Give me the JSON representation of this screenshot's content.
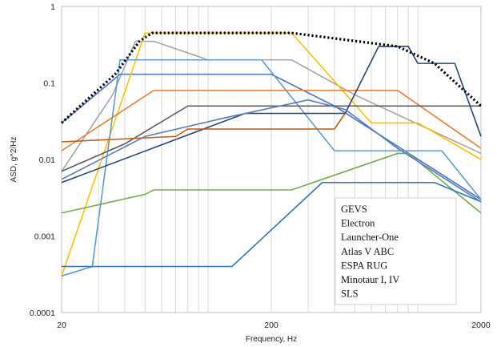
{
  "chart_data": {
    "type": "line",
    "xlabel": "Frequency, Hz",
    "ylabel": "ASD, g^2/Hz",
    "x_scale": "log",
    "y_scale": "log",
    "xlim": [
      20,
      2000
    ],
    "ylim": [
      0.0001,
      1
    ],
    "x_ticks": [
      "20",
      "200",
      "2000"
    ],
    "y_ticks": [
      "1",
      "0.1",
      "0.01",
      "0.001",
      "0.0001"
    ],
    "grid": "vertical",
    "legend_placement": "bottom-right",
    "legend": [
      "GEVS",
      "Electron",
      "Launcher-One",
      "Atlas V ABC",
      "ESPA RUG",
      "Minotaur I, IV",
      "SLS"
    ],
    "series": [
      {
        "name": "",
        "color": "#000000",
        "dashed": true,
        "points": [
          [
            20,
            0.03
          ],
          [
            36,
            0.13
          ],
          [
            47,
            0.35
          ],
          [
            54,
            0.45
          ],
          [
            250,
            0.45
          ],
          [
            800,
            0.3
          ],
          [
            1200,
            0.18
          ],
          [
            2000,
            0.05
          ]
        ]
      },
      {
        "name": "",
        "color": "#A5A5A5",
        "points": [
          [
            20,
            0.007
          ],
          [
            35,
            0.07
          ],
          [
            45,
            0.35
          ],
          [
            55,
            0.35
          ],
          [
            100,
            0.2
          ],
          [
            250,
            0.2
          ],
          [
            500,
            0.07
          ],
          [
            2000,
            0.012
          ]
        ]
      },
      {
        "name": "",
        "color": "#4472C4",
        "points": [
          [
            20,
            0.03
          ],
          [
            38,
            0.13
          ],
          [
            200,
            0.13
          ],
          [
            400,
            0.05
          ],
          [
            2000,
            0.003
          ]
        ]
      },
      {
        "name": "",
        "color": "#FFC000",
        "points": [
          [
            20,
            0.0003
          ],
          [
            50,
            0.45
          ],
          [
            250,
            0.45
          ],
          [
            600,
            0.03
          ],
          [
            1000,
            0.03
          ],
          [
            2000,
            0.01
          ]
        ]
      },
      {
        "name": "",
        "color": "#5B9BD5",
        "points": [
          [
            20,
            0.0003
          ],
          [
            28,
            0.0004
          ],
          [
            38,
            0.2
          ],
          [
            180,
            0.2
          ],
          [
            400,
            0.013
          ],
          [
            1300,
            0.013
          ],
          [
            2000,
            0.003
          ]
        ]
      },
      {
        "name": "",
        "color": "#ED7D31",
        "points": [
          [
            20,
            0.013
          ],
          [
            55,
            0.08
          ],
          [
            800,
            0.08
          ],
          [
            2000,
            0.014
          ]
        ]
      },
      {
        "name": "",
        "color": "#595959",
        "points": [
          [
            20,
            0.007
          ],
          [
            40,
            0.016
          ],
          [
            80,
            0.05
          ],
          [
            2000,
            0.05
          ]
        ]
      },
      {
        "name": "",
        "color": "#264478",
        "points": [
          [
            20,
            0.005
          ],
          [
            150,
            0.04
          ],
          [
            450,
            0.04
          ],
          [
            650,
            0.3
          ],
          [
            900,
            0.3
          ],
          [
            1000,
            0.18
          ],
          [
            1500,
            0.18
          ],
          [
            2000,
            0.02
          ]
        ]
      },
      {
        "name": "",
        "color": "#C55A11",
        "points": [
          [
            20,
            0.017
          ],
          [
            70,
            0.02
          ],
          [
            80,
            0.025
          ],
          [
            400,
            0.025
          ],
          [
            450,
            0.04
          ]
        ]
      },
      {
        "name": "",
        "color": "#70AD47",
        "points": [
          [
            20,
            0.002
          ],
          [
            50,
            0.0035
          ],
          [
            55,
            0.004
          ],
          [
            250,
            0.004
          ],
          [
            800,
            0.012
          ],
          [
            900,
            0.012
          ],
          [
            2000,
            0.002
          ]
        ]
      },
      {
        "name": "",
        "color": "#2E75B6",
        "points": [
          [
            20,
            0.0004
          ],
          [
            130,
            0.0004
          ],
          [
            350,
            0.005
          ],
          [
            1200,
            0.005
          ],
          [
            2000,
            0.0028
          ]
        ]
      },
      {
        "name": "",
        "color": "#5B7BB8",
        "points": [
          [
            20,
            0.0055
          ],
          [
            50,
            0.02
          ],
          [
            120,
            0.035
          ],
          [
            300,
            0.06
          ],
          [
            450,
            0.045
          ],
          [
            800,
            0.014
          ],
          [
            2000,
            0.0028
          ]
        ]
      }
    ]
  }
}
